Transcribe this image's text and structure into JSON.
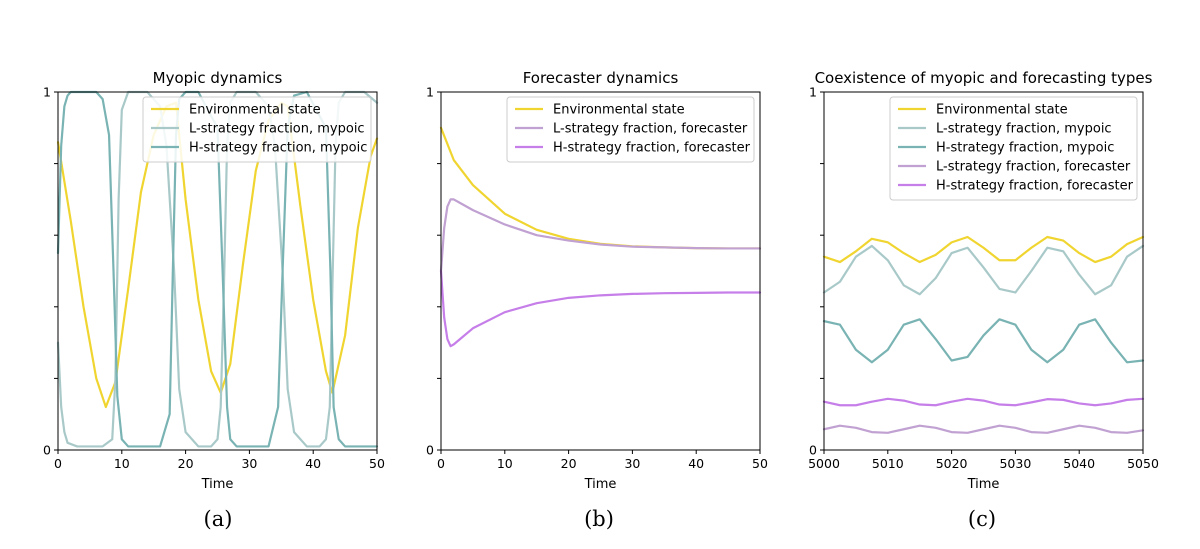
{
  "colors": {
    "env": "#f0d531",
    "L_myopic": "#a9c9c9",
    "H_myopic": "#7ab3b3",
    "L_forecaster": "#c0a1d2",
    "H_forecaster": "#c67ee9"
  },
  "chart_data": [
    {
      "type": "line",
      "panel_label": "(a)",
      "title": "Myopic dynamics",
      "xlabel": "Time",
      "ylabel": "",
      "xlim": [
        0,
        50
      ],
      "ylim": [
        0,
        1
      ],
      "xticks": [
        0,
        10,
        20,
        30,
        40,
        50
      ],
      "yticks": [
        0,
        1
      ],
      "legend_position": "top-right",
      "series": [
        {
          "name": "Environmental state",
          "key": "env",
          "x": [
            0,
            2,
            4,
            6,
            7.5,
            9,
            11,
            13,
            15,
            17,
            18.5,
            20,
            22,
            24,
            25.5,
            27,
            29,
            31,
            33,
            35,
            36,
            38,
            40,
            42,
            43,
            45,
            47,
            49,
            50
          ],
          "y": [
            0.86,
            0.64,
            0.4,
            0.2,
            0.12,
            0.19,
            0.45,
            0.72,
            0.88,
            0.96,
            0.97,
            0.7,
            0.42,
            0.22,
            0.16,
            0.24,
            0.52,
            0.78,
            0.92,
            0.97,
            0.96,
            0.68,
            0.42,
            0.22,
            0.16,
            0.32,
            0.62,
            0.82,
            0.87
          ]
        },
        {
          "name": "L-strategy fraction, mypoic",
          "key": "L_myopic",
          "x": [
            0,
            0.5,
            1,
            1.5,
            3,
            5,
            7,
            8.5,
            9,
            9.5,
            10,
            11,
            14,
            16,
            17,
            18.2,
            19,
            20,
            22,
            24,
            25,
            25.5,
            26,
            26.5,
            27,
            28,
            31,
            33,
            34,
            35.2,
            36,
            37,
            39,
            41,
            42,
            42.6,
            43,
            43.5,
            44,
            45,
            48,
            50
          ],
          "y": [
            0.3,
            0.12,
            0.05,
            0.02,
            0.01,
            0.01,
            0.01,
            0.03,
            0.2,
            0.7,
            0.95,
            1,
            1,
            0.96,
            0.85,
            0.5,
            0.17,
            0.05,
            0.01,
            0.01,
            0.03,
            0.12,
            0.45,
            0.85,
            0.97,
            1,
            1,
            0.96,
            0.85,
            0.5,
            0.17,
            0.05,
            0.01,
            0.01,
            0.03,
            0.12,
            0.45,
            0.85,
            0.97,
            1,
            1,
            0.97
          ]
        },
        {
          "name": "H-strategy fraction, mypoic",
          "key": "H_myopic",
          "x": [
            0,
            0.5,
            1,
            1.5,
            2,
            2.5,
            3,
            6,
            7,
            8,
            8.7,
            9.3,
            10,
            11,
            14,
            16,
            17.5,
            18,
            18.5,
            19,
            20,
            22,
            25,
            25.8,
            26.5,
            27,
            28,
            31,
            33,
            34.5,
            35.2,
            36,
            37,
            39,
            42,
            42.7,
            43.2,
            44,
            45,
            48,
            50
          ],
          "y": [
            0.55,
            0.85,
            0.96,
            0.99,
            1,
            1,
            1,
            1,
            0.98,
            0.88,
            0.5,
            0.15,
            0.03,
            0.01,
            0.01,
            0.01,
            0.1,
            0.5,
            0.88,
            0.98,
            1,
            1,
            0.9,
            0.5,
            0.12,
            0.03,
            0.01,
            0.01,
            0.01,
            0.12,
            0.5,
            0.9,
            0.99,
            1,
            0.9,
            0.5,
            0.12,
            0.03,
            0.01,
            0.01,
            0.01
          ]
        }
      ]
    },
    {
      "type": "line",
      "panel_label": "(b)",
      "title": "Forecaster dynamics",
      "xlabel": "Time",
      "ylabel": "",
      "xlim": [
        0,
        50
      ],
      "ylim": [
        0,
        1
      ],
      "xticks": [
        0,
        10,
        20,
        30,
        40,
        50
      ],
      "yticks": [
        0,
        1
      ],
      "legend_position": "top-right",
      "series": [
        {
          "name": "Environmental state",
          "key": "env",
          "x": [
            0,
            2,
            5,
            10,
            15,
            20,
            25,
            30,
            35,
            40,
            45,
            50
          ],
          "y": [
            0.9,
            0.81,
            0.74,
            0.66,
            0.615,
            0.59,
            0.576,
            0.569,
            0.566,
            0.564,
            0.563,
            0.563
          ]
        },
        {
          "name": "L-strategy fraction, forecaster",
          "key": "L_forecaster",
          "x": [
            0,
            0.5,
            1,
            1.5,
            2,
            3,
            5,
            10,
            15,
            20,
            25,
            30,
            35,
            40,
            45,
            50
          ],
          "y": [
            0.5,
            0.62,
            0.68,
            0.7,
            0.7,
            0.69,
            0.67,
            0.63,
            0.6,
            0.585,
            0.574,
            0.568,
            0.566,
            0.564,
            0.563,
            0.563
          ]
        },
        {
          "name": "H-strategy fraction, forecaster",
          "key": "H_forecaster",
          "x": [
            0,
            0.5,
            1,
            1.5,
            2,
            3,
            5,
            10,
            15,
            20,
            25,
            30,
            35,
            40,
            45,
            50
          ],
          "y": [
            0.5,
            0.37,
            0.31,
            0.29,
            0.295,
            0.31,
            0.34,
            0.385,
            0.41,
            0.425,
            0.432,
            0.436,
            0.438,
            0.439,
            0.44,
            0.44
          ]
        }
      ]
    },
    {
      "type": "line",
      "panel_label": "(c)",
      "title": "Coexistence of myopic and forecasting types",
      "xlabel": "Time",
      "ylabel": "",
      "xlim": [
        5000,
        5050
      ],
      "ylim": [
        0,
        1
      ],
      "xticks": [
        5000,
        5010,
        5020,
        5030,
        5040,
        5050
      ],
      "yticks": [
        0,
        1
      ],
      "legend_position": "top-right",
      "series": [
        {
          "name": "Environmental state",
          "key": "env",
          "x": [
            5000,
            5002.5,
            5005,
            5007.5,
            5010,
            5012.5,
            5015,
            5017.5,
            5020,
            5022.5,
            5025,
            5027.5,
            5030,
            5032.5,
            5035,
            5037.5,
            5040,
            5042.5,
            5045,
            5047.5,
            5050
          ],
          "y": [
            0.54,
            0.525,
            0.555,
            0.59,
            0.58,
            0.55,
            0.525,
            0.545,
            0.58,
            0.595,
            0.565,
            0.53,
            0.53,
            0.565,
            0.595,
            0.585,
            0.55,
            0.525,
            0.54,
            0.575,
            0.595
          ]
        },
        {
          "name": "L-strategy fraction, mypoic",
          "key": "L_myopic",
          "x": [
            5000,
            5002.5,
            5005,
            5007.5,
            5010,
            5012.5,
            5015,
            5017.5,
            5020,
            5022.5,
            5025,
            5027.5,
            5030,
            5032.5,
            5035,
            5037.5,
            5040,
            5042.5,
            5045,
            5047.5,
            5050
          ],
          "y": [
            0.44,
            0.47,
            0.54,
            0.57,
            0.53,
            0.46,
            0.435,
            0.48,
            0.55,
            0.565,
            0.51,
            0.45,
            0.44,
            0.5,
            0.565,
            0.555,
            0.49,
            0.435,
            0.46,
            0.54,
            0.57
          ]
        },
        {
          "name": "H-strategy fraction, mypoic",
          "key": "H_myopic",
          "x": [
            5000,
            5002.5,
            5005,
            5007.5,
            5010,
            5012.5,
            5015,
            5017.5,
            5020,
            5022.5,
            5025,
            5027.5,
            5030,
            5032.5,
            5035,
            5037.5,
            5040,
            5042.5,
            5045,
            5047.5,
            5050
          ],
          "y": [
            0.36,
            0.35,
            0.28,
            0.245,
            0.28,
            0.35,
            0.365,
            0.31,
            0.25,
            0.26,
            0.32,
            0.365,
            0.35,
            0.28,
            0.245,
            0.28,
            0.35,
            0.365,
            0.3,
            0.245,
            0.25
          ]
        },
        {
          "name": "L-strategy fraction, forecaster",
          "key": "L_forecaster",
          "x": [
            5000,
            5002.5,
            5005,
            5007.5,
            5010,
            5012.5,
            5015,
            5017.5,
            5020,
            5022.5,
            5025,
            5027.5,
            5030,
            5032.5,
            5035,
            5037.5,
            5040,
            5042.5,
            5045,
            5047.5,
            5050
          ],
          "y": [
            0.058,
            0.068,
            0.062,
            0.05,
            0.048,
            0.058,
            0.068,
            0.062,
            0.05,
            0.048,
            0.058,
            0.068,
            0.062,
            0.05,
            0.048,
            0.058,
            0.068,
            0.062,
            0.05,
            0.048,
            0.055
          ]
        },
        {
          "name": "H-strategy fraction, forecaster",
          "key": "H_forecaster",
          "x": [
            5000,
            5002.5,
            5005,
            5007.5,
            5010,
            5012.5,
            5015,
            5017.5,
            5020,
            5022.5,
            5025,
            5027.5,
            5030,
            5032.5,
            5035,
            5037.5,
            5040,
            5042.5,
            5045,
            5047.5,
            5050
          ],
          "y": [
            0.135,
            0.125,
            0.125,
            0.135,
            0.143,
            0.138,
            0.127,
            0.125,
            0.135,
            0.143,
            0.138,
            0.127,
            0.125,
            0.133,
            0.142,
            0.14,
            0.13,
            0.125,
            0.13,
            0.14,
            0.143
          ]
        }
      ]
    }
  ]
}
